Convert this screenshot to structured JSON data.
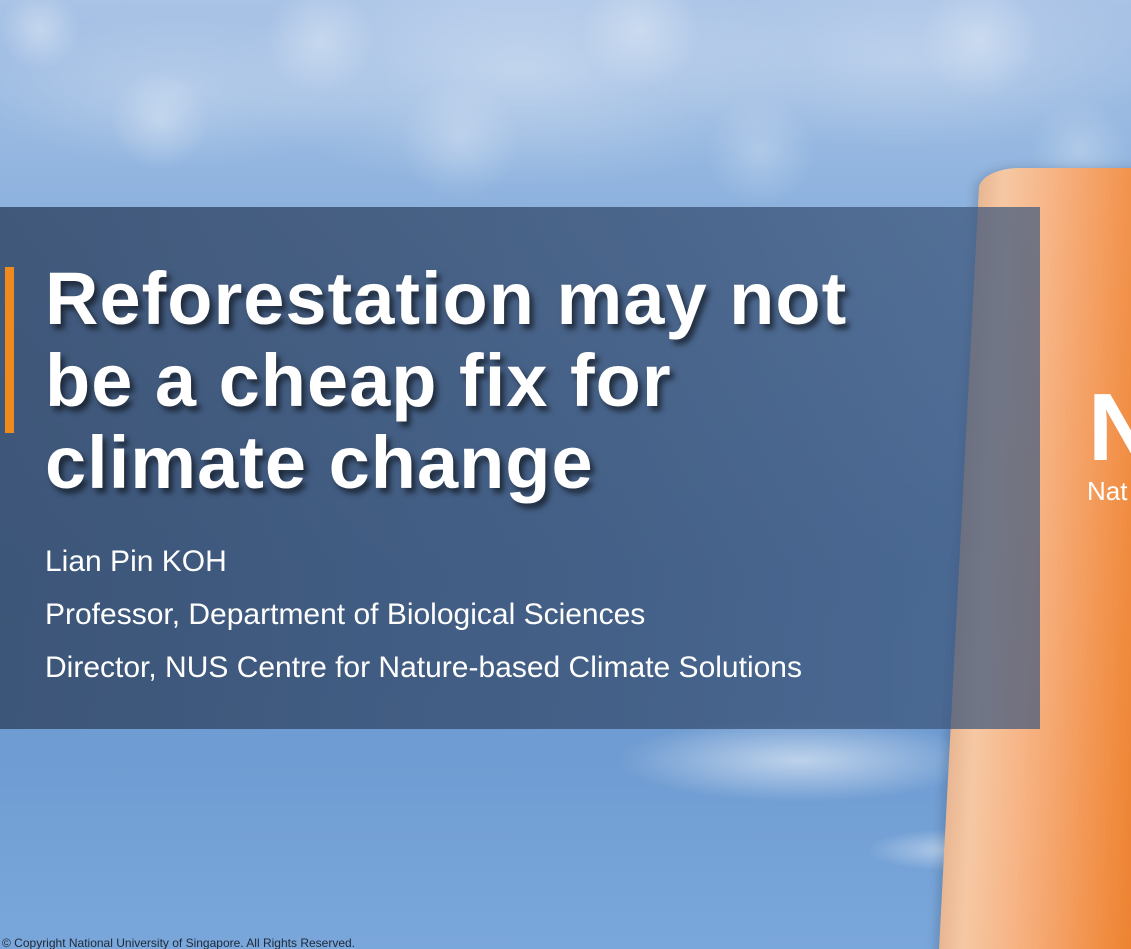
{
  "slide": {
    "title": "Reforestation may not\nbe a cheap fix for\nclimate change",
    "presenter_name": "Lian Pin KOH",
    "presenter_role": "Professor, Department of Biological Sciences",
    "presenter_director": "Director, NUS Centre for Nature-based Climate Solutions",
    "copyright": "© Copyright National University of Singapore. All Rights Reserved.",
    "pillar_logo_text": "N",
    "pillar_subtext": "Nat"
  },
  "colors": {
    "accent": "#f18a1c",
    "banner": "#344a6a",
    "pillar": "#f4a064",
    "title_text": "#ffffff"
  }
}
